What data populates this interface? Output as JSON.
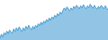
{
  "chart_data": {
    "type": "area",
    "values": [
      5.0,
      5.8,
      5.3,
      6.1,
      5.7,
      6.4,
      5.9,
      6.6,
      6.2,
      6.0,
      6.8,
      6.3,
      7.0,
      6.5,
      7.2,
      6.7,
      6.3,
      7.0,
      6.5,
      7.3,
      6.8,
      7.5,
      7.0,
      6.6,
      7.3,
      6.8,
      7.5,
      7.1,
      7.8,
      7.4,
      8.1,
      7.6,
      8.3,
      7.9,
      8.6,
      8.2,
      8.9,
      8.4,
      9.1,
      8.7,
      9.4,
      9.0,
      9.7,
      9.3,
      10.0,
      9.6,
      10.3,
      10.8,
      10.4,
      11.0,
      10.6,
      10.2,
      10.8,
      10.4,
      11.1,
      10.7,
      11.3,
      11.0,
      10.6,
      11.2,
      10.8,
      11.4,
      11.0,
      10.6,
      11.2,
      10.8,
      11.5,
      11.1,
      10.7,
      11.3,
      10.9,
      10.5,
      11.1,
      10.7,
      11.3,
      11.0,
      10.6,
      11.2,
      10.8,
      10.4
    ],
    "color": "#4a9fd4",
    "ylim": [
      4.7,
      12.3
    ],
    "grid": false,
    "tick_labels": false
  }
}
